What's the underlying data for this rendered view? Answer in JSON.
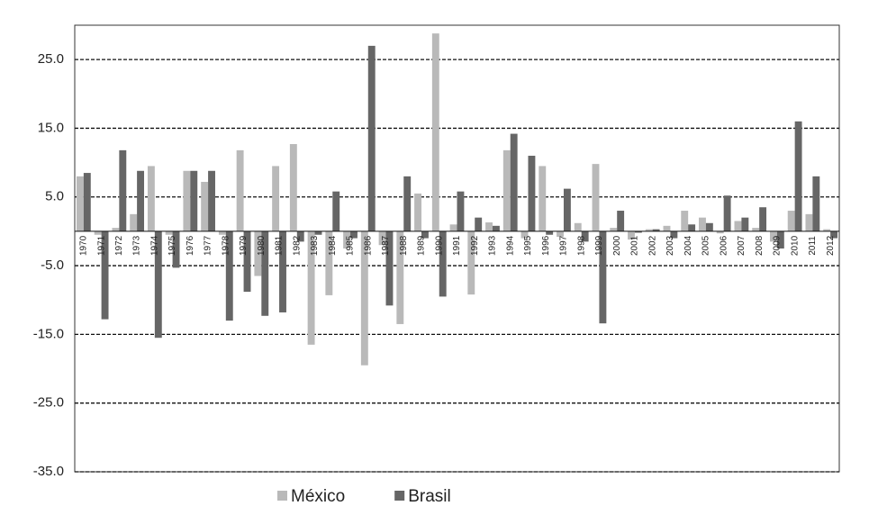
{
  "chart_data": {
    "type": "bar",
    "categories": [
      "1970",
      "1971",
      "1972",
      "1973",
      "1974",
      "1975",
      "1976",
      "1977",
      "1978",
      "1979",
      "1980",
      "1981",
      "1982",
      "1983",
      "1984",
      "1985",
      "1986",
      "1987",
      "1988",
      "1989",
      "1990",
      "1991",
      "1992",
      "1993",
      "1994",
      "1995",
      "1996",
      "1997",
      "1998",
      "1999",
      "2000",
      "2001",
      "2002",
      "2003",
      "2004",
      "2005",
      "2006",
      "2007",
      "2008",
      "2009",
      "2010",
      "2011",
      "2012"
    ],
    "series": [
      {
        "name": "México",
        "color": "#b9b9b9",
        "values": [
          8,
          -0.5,
          0.5,
          2.5,
          9.5,
          -0.5,
          8.8,
          7.2,
          -0.5,
          11.8,
          -6.5,
          9.5,
          12.7,
          -16.5,
          -9.3,
          -2.5,
          -19.5,
          -2,
          -13.5,
          5.5,
          28.8,
          1,
          -9.2,
          1.3,
          11.8,
          -1,
          9.5,
          -0.8,
          1.2,
          9.8,
          0.5,
          -1.2,
          0.3,
          0.8,
          3,
          2,
          -0.3,
          1.5,
          0.5,
          -1.5,
          3,
          2.5,
          0.3
        ]
      },
      {
        "name": "Brasil",
        "color": "#666666",
        "values": [
          8.5,
          -12.8,
          11.8,
          8.8,
          -15.5,
          -5.3,
          8.8,
          8.8,
          -13,
          -8.8,
          -12.3,
          -11.8,
          -1.5,
          -0.5,
          5.8,
          -1,
          27,
          -10.8,
          8,
          -1,
          -9.5,
          5.8,
          2,
          0.8,
          14.2,
          11,
          -0.5,
          6.2,
          -1.5,
          -13.4,
          3,
          -0.2,
          0.3,
          -1,
          1,
          1.2,
          5.2,
          2,
          3.5,
          -2.5,
          16,
          8,
          -1
        ]
      }
    ],
    "ylim": [
      -35,
      30
    ],
    "yticks": [
      {
        "value": -35,
        "label": "-35.0"
      },
      {
        "value": -25,
        "label": "-25.0"
      },
      {
        "value": -15,
        "label": "-15.0"
      },
      {
        "value": -5,
        "label": "-5.0"
      },
      {
        "value": 5,
        "label": "5.0"
      },
      {
        "value": 15,
        "label": "15.0"
      },
      {
        "value": 25,
        "label": "25.0"
      }
    ],
    "grid": true,
    "legend": "bottom"
  }
}
